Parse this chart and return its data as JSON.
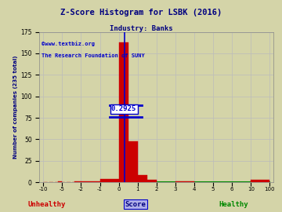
{
  "title": "Z-Score Histogram for LSBK (2016)",
  "subtitle": "Industry: Banks",
  "xlabel_left": "Unhealthy",
  "xlabel_center": "Score",
  "xlabel_right": "Healthy",
  "ylabel": "Number of companies (235 total)",
  "watermark_line1": "©www.textbiz.org",
  "watermark_line2": "The Research Foundation of SUNY",
  "lsbk_score": 0.2925,
  "bg_color": "#d4d4a8",
  "bar_color": "#cc0000",
  "marker_color": "#0000cc",
  "grid_color": "#bbbbbb",
  "title_color": "#000080",
  "unhealthy_color": "#cc0000",
  "healthy_color": "#008800",
  "score_box_color": "#0000cc",
  "score_box_bg": "#ffffff",
  "bar_edges": [
    -10,
    -9,
    -8,
    -7,
    -6,
    -5,
    -4,
    -3,
    -2,
    -1,
    0,
    0.5,
    1,
    1.5,
    2,
    3,
    4,
    5,
    6,
    10,
    100
  ],
  "bar_counts": [
    0,
    0,
    0,
    0,
    1,
    0,
    0,
    1,
    1,
    4,
    163,
    48,
    8,
    3,
    0,
    1,
    0,
    0,
    0,
    3
  ],
  "xtick_positions": [
    0,
    1,
    2,
    3,
    4,
    5,
    6,
    7,
    8,
    9,
    10,
    11,
    12,
    13,
    14,
    15,
    16,
    17,
    18,
    19
  ],
  "xtick_labels_show": [
    "-10",
    "-5",
    "-2",
    "-1",
    "0",
    "1",
    "2",
    "3",
    "4",
    "5",
    "6",
    "10",
    "100"
  ],
  "yticks": [
    0,
    25,
    50,
    75,
    100,
    125,
    150,
    175
  ],
  "ylim": [
    0,
    175
  ]
}
